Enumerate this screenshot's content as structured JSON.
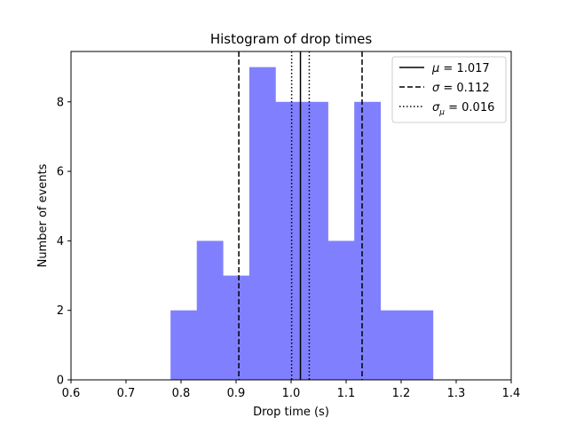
{
  "chart_data": {
    "type": "bar",
    "title": "Histogram of drop times",
    "xlabel": "Drop time (s)",
    "ylabel": "Number of events",
    "xlim": [
      0.6,
      1.4
    ],
    "ylim": [
      0,
      9.45
    ],
    "xticks": [
      0.6,
      0.7,
      0.8,
      0.9,
      1.0,
      1.1,
      1.2,
      1.3,
      1.4
    ],
    "xtick_labels": [
      "0.6",
      "0.7",
      "0.8",
      "0.9",
      "1.0",
      "1.1",
      "1.2",
      "1.3",
      "1.4"
    ],
    "yticks": [
      0,
      2,
      4,
      6,
      8
    ],
    "ytick_labels": [
      "0",
      "2",
      "4",
      "6",
      "8"
    ],
    "bin_edges": [
      0.7809,
      0.8286,
      0.8763,
      0.924,
      0.9717,
      1.0194,
      1.0671,
      1.1148,
      1.1625,
      1.2102,
      1.2579
    ],
    "counts": [
      2,
      4,
      3,
      9,
      8,
      8,
      4,
      8,
      2,
      2
    ],
    "bar_color": "#8080ff",
    "grid": false,
    "lines": [
      {
        "value": 1.017,
        "style": "solid",
        "label_parts": [
          "μ",
          "",
          " = 1.017"
        ]
      },
      {
        "value": 0.905,
        "style": "dashed",
        "label_parts": [
          "σ",
          "",
          " = 0.112"
        ]
      },
      {
        "value": 1.129,
        "style": "dashed"
      },
      {
        "value": 1.001,
        "style": "dotted",
        "label_parts": [
          "σ",
          "μ",
          " = 0.016"
        ]
      },
      {
        "value": 1.033,
        "style": "dotted"
      }
    ],
    "legend": {
      "placement": "top-right",
      "entries": [
        {
          "symbol": "μ",
          "sub": "",
          "text": " = 1.017",
          "style": "solid"
        },
        {
          "symbol": "σ",
          "sub": "",
          "text": " = 0.112",
          "style": "dashed"
        },
        {
          "symbol": "σ",
          "sub": "μ",
          "text": " = 0.016",
          "style": "dotted"
        }
      ]
    }
  }
}
